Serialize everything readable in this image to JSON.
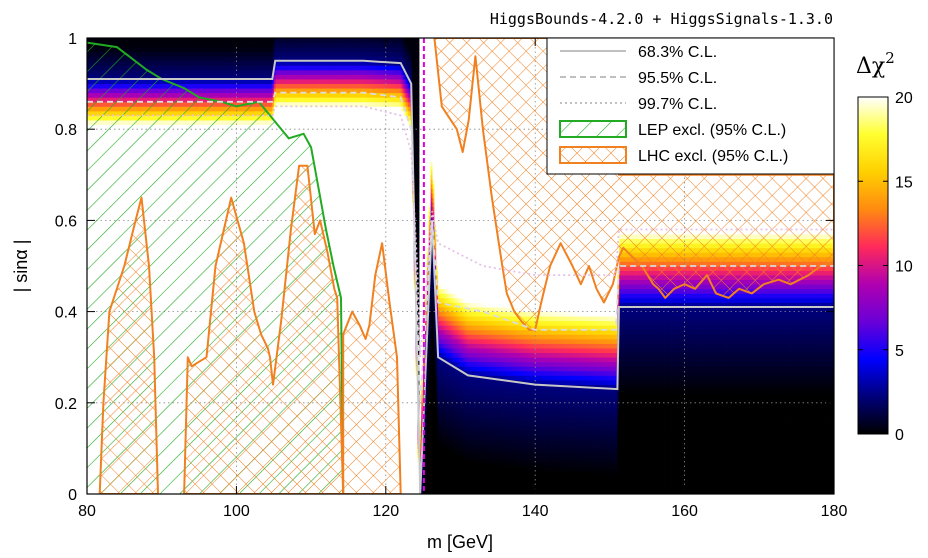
{
  "chart_data": {
    "type": "heatmap",
    "title": "HiggsBounds-4.2.0 + HiggsSignals-1.3.0",
    "xlabel": "m [GeV]",
    "ylabel": "| sinα |",
    "xlim": [
      80,
      180
    ],
    "ylim": [
      0,
      1
    ],
    "xticks": [
      "80",
      "100",
      "120",
      "140",
      "160",
      "180"
    ],
    "yticks": [
      "0",
      "0.2",
      "0.4",
      "0.6",
      "0.8",
      "1"
    ],
    "grid": true,
    "legend_position": "top-right",
    "colorbar": {
      "label_base": "Δχ",
      "label_exp": "2",
      "range": [
        0,
        20
      ],
      "ticks": [
        "0",
        "5",
        "10",
        "15",
        "20"
      ],
      "colors": [
        "#000000",
        "#00007a",
        "#0000ff",
        "#6a00d8",
        "#b000b0",
        "#ff2a5a",
        "#ff8a10",
        "#ffd000",
        "#ffff30",
        "#ffffff"
      ]
    },
    "higgs_mass_line": {
      "x": 125.1,
      "color": "#e000e0"
    },
    "legend": [
      {
        "label": "68.3% C.L.",
        "style": "solid",
        "color": "#c0c0c0"
      },
      {
        "label": "95.5% C.L.",
        "style": "dashed",
        "color": "#c0c0c0"
      },
      {
        "label": "99.7% C.L.",
        "style": "dotted",
        "color": "#c0c0c0"
      },
      {
        "label": "LEP excl. (95% C.L.)",
        "style": "hatch-diagonal",
        "color": "#22aa22"
      },
      {
        "label": "LHC excl. (95% C.L.)",
        "style": "hatch-cross",
        "color": "#f08020"
      }
    ],
    "contours": {
      "cl68": [
        [
          80,
          0.91
        ],
        [
          104.8,
          0.91
        ],
        [
          105.2,
          0.95
        ],
        [
          117,
          0.95
        ],
        [
          122,
          0.945
        ],
        [
          123.4,
          0.9
        ],
        [
          124.2,
          0.3
        ],
        [
          124.6,
          0
        ],
        [
          126.2,
          0.6
        ],
        [
          127,
          0.3
        ],
        [
          131,
          0.26
        ],
        [
          140,
          0.24
        ],
        [
          151,
          0.23
        ],
        [
          151.2,
          0.41
        ],
        [
          180,
          0.41
        ]
      ],
      "cl95": [
        [
          80,
          0.86
        ],
        [
          104.8,
          0.86
        ],
        [
          105.2,
          0.88
        ],
        [
          117,
          0.88
        ],
        [
          122,
          0.87
        ],
        [
          123.4,
          0.8
        ],
        [
          124.2,
          0.4
        ],
        [
          124.6,
          0.2
        ],
        [
          126.2,
          0.6
        ],
        [
          127,
          0.42
        ],
        [
          133,
          0.4
        ],
        [
          140,
          0.36
        ],
        [
          150.8,
          0.36
        ],
        [
          151.2,
          0.5
        ],
        [
          180,
          0.5
        ]
      ],
      "cl99": [
        [
          80,
          0.83
        ],
        [
          104.8,
          0.83
        ],
        [
          105.2,
          0.85
        ],
        [
          117,
          0.85
        ],
        [
          122,
          0.83
        ],
        [
          123.4,
          0.75
        ],
        [
          124.2,
          0.5
        ],
        [
          124.6,
          0.3
        ],
        [
          126.2,
          0.62
        ],
        [
          127,
          0.55
        ],
        [
          133,
          0.5
        ],
        [
          140,
          0.48
        ],
        [
          150.8,
          0.48
        ],
        [
          151.2,
          0.58
        ],
        [
          180,
          0.58
        ]
      ]
    },
    "lep_exclusion": [
      [
        80,
        0.99
      ],
      [
        84,
        0.98
      ],
      [
        88,
        0.93
      ],
      [
        90,
        0.91
      ],
      [
        93,
        0.89
      ],
      [
        95,
        0.87
      ],
      [
        98,
        0.86
      ],
      [
        100,
        0.85
      ],
      [
        103,
        0.86
      ],
      [
        105,
        0.82
      ],
      [
        107,
        0.78
      ],
      [
        109,
        0.79
      ],
      [
        110,
        0.76
      ],
      [
        111,
        0.67
      ],
      [
        112,
        0.58
      ],
      [
        113,
        0.5
      ],
      [
        114,
        0.43
      ],
      [
        114.3,
        0
      ]
    ],
    "lhc_exclusion": [
      [
        [
          81.7,
          0
        ],
        [
          82.2,
          0.2
        ],
        [
          83,
          0.4
        ],
        [
          85,
          0.5
        ],
        [
          86.5,
          0.6
        ],
        [
          87.3,
          0.65
        ],
        [
          88.3,
          0.5
        ],
        [
          89,
          0.3
        ],
        [
          89.5,
          0
        ]
      ],
      [
        [
          93,
          0
        ],
        [
          93.5,
          0.3
        ],
        [
          94,
          0.28
        ],
        [
          96,
          0.3
        ],
        [
          97.2,
          0.5
        ],
        [
          99.3,
          0.65
        ],
        [
          101,
          0.55
        ],
        [
          102.4,
          0.4
        ],
        [
          103.3,
          0.35
        ],
        [
          104.2,
          0.32
        ],
        [
          104.5,
          0.3
        ],
        [
          104.9,
          0.24
        ],
        [
          106,
          0.38
        ],
        [
          107.3,
          0.58
        ],
        [
          108.4,
          0.72
        ],
        [
          109.5,
          0.72
        ],
        [
          110.5,
          0.57
        ],
        [
          111.2,
          0.6
        ],
        [
          112.2,
          0.53
        ],
        [
          113.1,
          0.45
        ],
        [
          113.5,
          0.43
        ],
        [
          114.3,
          0
        ]
      ],
      [
        [
          114.3,
          0.35
        ],
        [
          115.5,
          0.4
        ],
        [
          116.5,
          0.37
        ],
        [
          117.3,
          0.34
        ],
        [
          117.8,
          0.37
        ],
        [
          118.6,
          0.48
        ],
        [
          119.5,
          0.55
        ],
        [
          120.5,
          0.42
        ],
        [
          121.5,
          0.3
        ],
        [
          122,
          0
        ],
        [
          114.3,
          0
        ]
      ],
      [
        [
          126.5,
          1
        ],
        [
          127.5,
          0.85
        ],
        [
          129.5,
          0.8
        ],
        [
          130.3,
          0.75
        ],
        [
          131.1,
          0.82
        ],
        [
          131.6,
          0.9
        ],
        [
          132,
          0.96
        ],
        [
          133,
          0.8
        ],
        [
          134.2,
          0.65
        ],
        [
          135.6,
          0.5
        ],
        [
          136.2,
          0.44
        ],
        [
          137.2,
          0.4
        ],
        [
          138.1,
          0.38
        ],
        [
          139.2,
          0.36
        ],
        [
          140,
          0.36
        ],
        [
          140.8,
          0.42
        ],
        [
          142,
          0.5
        ],
        [
          143.4,
          0.55
        ],
        [
          145,
          0.5
        ],
        [
          146.1,
          0.46
        ],
        [
          147.2,
          0.5
        ],
        [
          148.2,
          0.45
        ],
        [
          149.2,
          0.42
        ],
        [
          150.4,
          0.46
        ],
        [
          151.2,
          0.52
        ],
        [
          151.8,
          0.54
        ],
        [
          153,
          0.52
        ],
        [
          154.3,
          0.5
        ],
        [
          155.8,
          0.46
        ],
        [
          156.5,
          0.45
        ],
        [
          157.4,
          0.43
        ],
        [
          158.6,
          0.45
        ],
        [
          160,
          0.46
        ],
        [
          161.4,
          0.45
        ],
        [
          163,
          0.48
        ],
        [
          164.2,
          0.44
        ],
        [
          165.9,
          0.43
        ],
        [
          167.3,
          0.45
        ],
        [
          169,
          0.44
        ],
        [
          170.6,
          0.46
        ],
        [
          172.6,
          0.47
        ],
        [
          174.2,
          0.46
        ],
        [
          176.6,
          0.48
        ],
        [
          178.2,
          0.5
        ],
        [
          180,
          0.51
        ],
        [
          180,
          0.7
        ],
        [
          151.2,
          0.7
        ],
        [
          150.8,
          1
        ]
      ]
    ]
  }
}
